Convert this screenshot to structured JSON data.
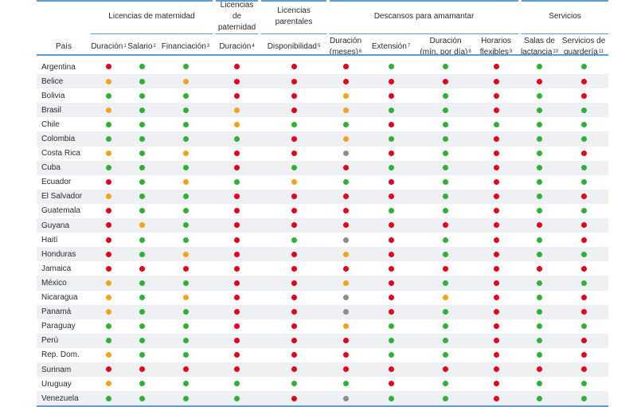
{
  "groups": [
    {
      "label": "Licencias de maternidad"
    },
    {
      "label": "Licencias de paternidad"
    },
    {
      "label": "Licencias parentales"
    },
    {
      "label": "Descansos para amamantar"
    },
    {
      "label": "Servicios"
    }
  ],
  "columns": [
    {
      "label": "País"
    },
    {
      "label": "Duración",
      "note": "1"
    },
    {
      "label": "Salario",
      "note": "2"
    },
    {
      "label": "Financiación",
      "note": "3"
    },
    {
      "label": "Duración",
      "note": "4"
    },
    {
      "label": "Disponibilidad",
      "note": "5"
    },
    {
      "line1": "Duración",
      "line2": "(meses)",
      "note": "6"
    },
    {
      "label": "Extensión",
      "note": "7"
    },
    {
      "line1": "Duración",
      "line2": "(mín. por día)",
      "note": "8"
    },
    {
      "line1": "Horarios",
      "line2": "flexibles",
      "note": "9"
    },
    {
      "line1": "Salas de",
      "line2": "lactancia",
      "note": "10"
    },
    {
      "line1": "Servicios de",
      "line2": "guardería",
      "note": "11"
    }
  ],
  "status_colors": {
    "r": "#e2001a",
    "g": "#2eb135",
    "o": "#f3a317",
    "x": "#8c8c8c"
  },
  "rows": [
    {
      "country": "Argentina",
      "v": [
        "r",
        "g",
        "g",
        "r",
        "r",
        "r",
        "g",
        "g",
        "r",
        "g",
        "g"
      ]
    },
    {
      "country": "Belice",
      "v": [
        "o",
        "g",
        "o",
        "r",
        "r",
        "r",
        "r",
        "r",
        "r",
        "r",
        "r"
      ]
    },
    {
      "country": "Bolivia",
      "v": [
        "g",
        "g",
        "g",
        "r",
        "r",
        "o",
        "r",
        "g",
        "r",
        "g",
        "r"
      ]
    },
    {
      "country": "Brasil",
      "v": [
        "o",
        "g",
        "g",
        "o",
        "r",
        "o",
        "g",
        "g",
        "r",
        "g",
        "g"
      ]
    },
    {
      "country": "Chile",
      "v": [
        "g",
        "g",
        "g",
        "o",
        "g",
        "g",
        "r",
        "g",
        "g",
        "g",
        "g"
      ]
    },
    {
      "country": "Colombia",
      "v": [
        "g",
        "g",
        "g",
        "g",
        "r",
        "o",
        "g",
        "g",
        "r",
        "g",
        "g"
      ]
    },
    {
      "country": "Costa Rica",
      "v": [
        "o",
        "g",
        "o",
        "r",
        "r",
        "x",
        "r",
        "g",
        "r",
        "g",
        "r"
      ]
    },
    {
      "country": "Cuba",
      "v": [
        "g",
        "g",
        "g",
        "r",
        "g",
        "r",
        "g",
        "g",
        "r",
        "g",
        "g"
      ]
    },
    {
      "country": "Ecuador",
      "v": [
        "r",
        "g",
        "o",
        "g",
        "o",
        "g",
        "r",
        "g",
        "r",
        "g",
        "g"
      ]
    },
    {
      "country": "El Salvador",
      "v": [
        "o",
        "g",
        "g",
        "r",
        "r",
        "r",
        "r",
        "g",
        "r",
        "g",
        "r"
      ]
    },
    {
      "country": "Guatemala",
      "v": [
        "r",
        "g",
        "g",
        "r",
        "r",
        "r",
        "g",
        "g",
        "r",
        "g",
        "g"
      ]
    },
    {
      "country": "Guyana",
      "v": [
        "r",
        "o",
        "g",
        "r",
        "r",
        "r",
        "r",
        "r",
        "r",
        "r",
        "r"
      ]
    },
    {
      "country": "Haití",
      "v": [
        "r",
        "g",
        "g",
        "r",
        "g",
        "x",
        "r",
        "g",
        "r",
        "g",
        "r"
      ]
    },
    {
      "country": "Honduras",
      "v": [
        "r",
        "g",
        "o",
        "r",
        "r",
        "o",
        "r",
        "g",
        "r",
        "g",
        "g"
      ]
    },
    {
      "country": "Jamaica",
      "v": [
        "r",
        "r",
        "r",
        "r",
        "r",
        "r",
        "r",
        "r",
        "r",
        "r",
        "r"
      ]
    },
    {
      "country": "México",
      "v": [
        "o",
        "g",
        "g",
        "r",
        "r",
        "o",
        "r",
        "g",
        "r",
        "g",
        "g"
      ]
    },
    {
      "country": "Nicaragua",
      "v": [
        "o",
        "g",
        "o",
        "r",
        "r",
        "x",
        "r",
        "o",
        "r",
        "g",
        "r"
      ]
    },
    {
      "country": "Panamá",
      "v": [
        "o",
        "g",
        "g",
        "r",
        "r",
        "x",
        "r",
        "g",
        "r",
        "g",
        "r"
      ]
    },
    {
      "country": "Paraguay",
      "v": [
        "g",
        "g",
        "g",
        "r",
        "r",
        "o",
        "g",
        "g",
        "r",
        "g",
        "g"
      ]
    },
    {
      "country": "Perú",
      "v": [
        "g",
        "g",
        "g",
        "r",
        "r",
        "r",
        "g",
        "g",
        "r",
        "g",
        "r"
      ]
    },
    {
      "country": "Rep. Dom.",
      "v": [
        "o",
        "g",
        "g",
        "r",
        "r",
        "r",
        "g",
        "g",
        "r",
        "g",
        "r"
      ]
    },
    {
      "country": "Surinam",
      "v": [
        "r",
        "r",
        "r",
        "r",
        "r",
        "r",
        "r",
        "r",
        "r",
        "r",
        "r"
      ]
    },
    {
      "country": "Uruguay",
      "v": [
        "o",
        "g",
        "g",
        "g",
        "g",
        "g",
        "r",
        "g",
        "r",
        "g",
        "g"
      ]
    },
    {
      "country": "Venezuela",
      "v": [
        "g",
        "g",
        "g",
        "g",
        "r",
        "x",
        "g",
        "g",
        "r",
        "g",
        "g"
      ]
    }
  ]
}
